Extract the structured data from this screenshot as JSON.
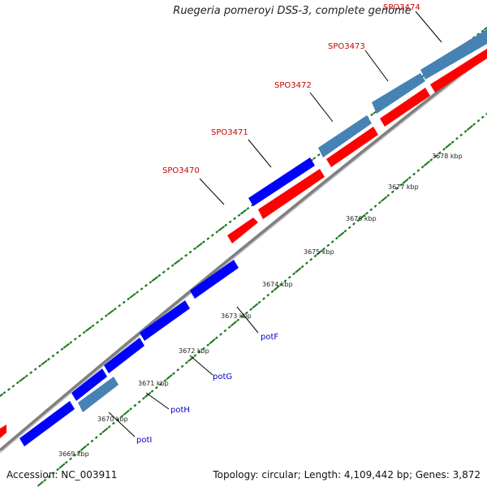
{
  "title": "Ruegeria pomeroyi DSS-3, complete genome",
  "footer": {
    "accession": "Accession: NC_003911",
    "summary": "Topology: circular; Length: 4,109,442 bp; Genes: 3,872"
  },
  "colors": {
    "forward_gene": "#ff0000",
    "reverse_gene": "#0000ff",
    "highlight_gene": "#4682b4",
    "backbone": "#808080",
    "tick": "#1a7a1a",
    "locus_label": "#cc0000",
    "gene_label": "#0000cc"
  },
  "scale_labels": [
    "3669 kbp",
    "3670 kbp",
    "3671 kbp",
    "3672 kbp",
    "3673 kbp",
    "3674 kbp",
    "3675 kbp",
    "3676 kbp",
    "3677 kbp",
    "3678 kbp"
  ],
  "locus_labels": [
    "SPO3470",
    "SPO3471",
    "SPO3472",
    "SPO3473",
    "SPO3474"
  ],
  "gene_labels": [
    "potI",
    "potH",
    "potG",
    "potF"
  ]
}
